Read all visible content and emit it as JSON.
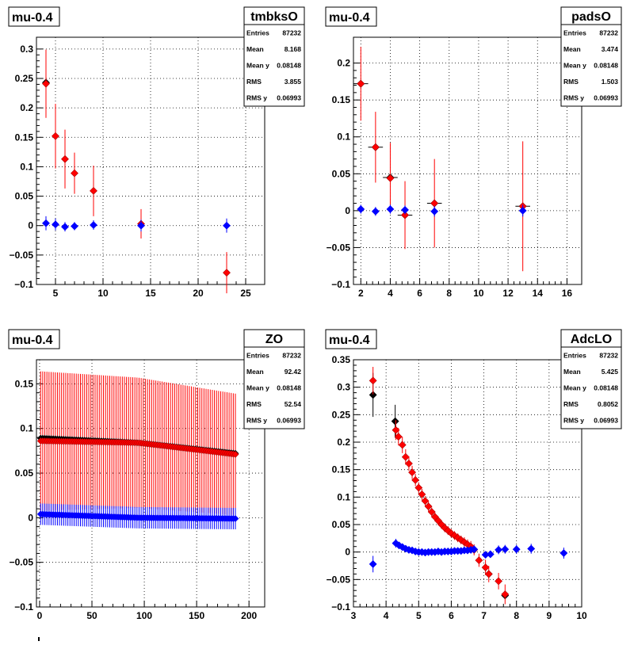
{
  "chart_data": [
    {
      "type": "scatter",
      "panel_title": "mu-0.4",
      "hist_name": "tmbksO",
      "stats": [
        {
          "label": "Entries",
          "value": "87232"
        },
        {
          "label": "Mean",
          "value": "8.168"
        },
        {
          "label": "Mean y",
          "value": "0.08148"
        },
        {
          "label": "RMS",
          "value": "3.855"
        },
        {
          "label": "RMS y",
          "value": "0.06993"
        }
      ],
      "xlim": [
        3,
        27
      ],
      "ylim": [
        -0.1,
        0.32
      ],
      "xticks": [
        5,
        10,
        15,
        20,
        25
      ],
      "yticks": [
        -0.1,
        -0.05,
        0,
        0.05,
        0.1,
        0.15,
        0.2,
        0.25,
        0.3
      ],
      "ytick_labels": [
        "−0.1",
        "−0.05",
        "0",
        "0.05",
        "0.1",
        "0.15",
        "0.2",
        "0.25",
        "0.3"
      ],
      "grid": true,
      "series": [
        {
          "color": "#000000",
          "points": [
            {
              "x": 4,
              "y": 0.243,
              "err": 0.0
            }
          ]
        },
        {
          "color": "#ff0000",
          "points": [
            {
              "x": 4,
              "y": 0.241,
              "err": 0.058
            },
            {
              "x": 5,
              "y": 0.152,
              "err": 0.055
            },
            {
              "x": 6,
              "y": 0.113,
              "err": 0.05
            },
            {
              "x": 7,
              "y": 0.089,
              "err": 0.035
            },
            {
              "x": 9,
              "y": 0.059,
              "err": 0.043
            },
            {
              "x": 14,
              "y": 0.003,
              "err": 0.025
            },
            {
              "x": 23,
              "y": -0.08,
              "err": 0.035
            }
          ]
        },
        {
          "color": "#0000ff",
          "points": [
            {
              "x": 4,
              "y": 0.004,
              "err": 0.012
            },
            {
              "x": 5,
              "y": 0.002,
              "err": 0.01
            },
            {
              "x": 6,
              "y": -0.002,
              "err": 0.008
            },
            {
              "x": 7,
              "y": -0.001,
              "err": 0.007
            },
            {
              "x": 9,
              "y": 0.001,
              "err": 0.008
            },
            {
              "x": 14,
              "y": 0.0,
              "err": 0.01
            },
            {
              "x": 23,
              "y": 0.0,
              "err": 0.012
            }
          ]
        }
      ]
    },
    {
      "type": "scatter",
      "panel_title": "mu-0.4",
      "hist_name": "padsO",
      "stats": [
        {
          "label": "Entries",
          "value": "87232"
        },
        {
          "label": "Mean",
          "value": "3.474"
        },
        {
          "label": "Mean y",
          "value": "0.08148"
        },
        {
          "label": "RMS",
          "value": "1.503"
        },
        {
          "label": "RMS y",
          "value": "0.06993"
        }
      ],
      "xlim": [
        1.5,
        17
      ],
      "ylim": [
        -0.1,
        0.235
      ],
      "xticks": [
        2,
        4,
        6,
        8,
        10,
        12,
        14,
        16
      ],
      "yticks": [
        -0.1,
        -0.05,
        0,
        0.05,
        0.1,
        0.15,
        0.2
      ],
      "ytick_labels": [
        "−0.1",
        "−0.05",
        "0",
        "0.05",
        "0.1",
        "0.15",
        "0.2"
      ],
      "grid": true,
      "series": [
        {
          "color": "#000000",
          "points": [
            {
              "x": 2,
              "y": 0.172,
              "err": 0.0,
              "xerr": 0.5
            },
            {
              "x": 3,
              "y": 0.086,
              "err": 0.0,
              "xerr": 0.5
            },
            {
              "x": 4,
              "y": 0.045,
              "err": 0.0,
              "xerr": 0.5
            },
            {
              "x": 5,
              "y": -0.006,
              "err": 0.0,
              "xerr": 0.5
            },
            {
              "x": 7,
              "y": 0.01,
              "err": 0.0,
              "xerr": 0.5
            },
            {
              "x": 13,
              "y": 0.006,
              "err": 0.0,
              "xerr": 0.5
            }
          ]
        },
        {
          "color": "#ff0000",
          "points": [
            {
              "x": 2,
              "y": 0.172,
              "err": 0.05
            },
            {
              "x": 3,
              "y": 0.086,
              "err": 0.048
            },
            {
              "x": 4,
              "y": 0.044,
              "err": 0.048
            },
            {
              "x": 5,
              "y": -0.006,
              "err": 0.046
            },
            {
              "x": 7,
              "y": 0.01,
              "err": 0.06
            },
            {
              "x": 13,
              "y": 0.006,
              "err": 0.088
            }
          ]
        },
        {
          "color": "#0000ff",
          "points": [
            {
              "x": 2,
              "y": 0.002,
              "err": 0.006
            },
            {
              "x": 3,
              "y": -0.001,
              "err": 0.006
            },
            {
              "x": 4,
              "y": 0.002,
              "err": 0.006
            },
            {
              "x": 5,
              "y": 0.001,
              "err": 0.006
            },
            {
              "x": 7,
              "y": -0.001,
              "err": 0.007
            },
            {
              "x": 13,
              "y": 0.0,
              "err": 0.008
            }
          ]
        }
      ]
    },
    {
      "type": "scatter",
      "panel_title": "mu-0.4",
      "hist_name": "ZO",
      "stats": [
        {
          "label": "Entries",
          "value": "87232"
        },
        {
          "label": "Mean",
          "value": "92.42"
        },
        {
          "label": "Mean y",
          "value": "0.08148"
        },
        {
          "label": "RMS",
          "value": "52.54"
        },
        {
          "label": "RMS y",
          "value": "0.06993"
        }
      ],
      "xlim": [
        -3,
        215
      ],
      "ylim": [
        -0.1,
        0.177
      ],
      "xticks": [
        0,
        50,
        100,
        150,
        200
      ],
      "yticks": [
        -0.1,
        -0.05,
        0,
        0.05,
        0.1,
        0.15
      ],
      "ytick_labels": [
        "−0.1",
        "−0.05",
        "0",
        "0.05",
        "0.1",
        "0.15"
      ],
      "grid": true,
      "dense": {
        "x_start": 1,
        "x_end": 187,
        "step": 2,
        "black": {
          "y_start": 0.089,
          "y_mid": 0.084,
          "y_end": 0.072,
          "err_start": 0.0,
          "err_end": 0.0
        },
        "red": {
          "y_start": 0.086,
          "y_mid": 0.084,
          "y_end": 0.071,
          "err_start": 0.078,
          "err_end": 0.068
        },
        "blue": {
          "y_start": 0.004,
          "y_mid": 0.0,
          "y_end": -0.001,
          "err_start": 0.012,
          "err_end": 0.012
        }
      }
    },
    {
      "type": "scatter",
      "panel_title": "mu-0.4",
      "hist_name": "AdcLO",
      "stats": [
        {
          "label": "Entries",
          "value": "87232"
        },
        {
          "label": "Mean",
          "value": "5.425"
        },
        {
          "label": "Mean y",
          "value": "0.08148"
        },
        {
          "label": "RMS",
          "value": "0.8052"
        },
        {
          "label": "RMS y",
          "value": "0.06993"
        }
      ],
      "xlim": [
        3,
        10
      ],
      "ylim": [
        -0.1,
        0.35
      ],
      "xticks": [
        3,
        4,
        5,
        6,
        7,
        8,
        9,
        10
      ],
      "yticks": [
        -0.1,
        -0.05,
        0,
        0.05,
        0.1,
        0.15,
        0.2,
        0.25,
        0.3,
        0.35
      ],
      "ytick_labels": [
        "−0.1",
        "−0.05",
        "0",
        "0.05",
        "0.1",
        "0.15",
        "0.2",
        "0.25",
        "0.3",
        "0.35"
      ],
      "grid": true,
      "series": [
        {
          "color": "#000000",
          "points": [
            {
              "x": 3.6,
              "y": 0.286,
              "err": 0.04
            },
            {
              "x": 4.28,
              "y": 0.238,
              "err": 0.03
            },
            {
              "x": 7.15,
              "y": -0.04,
              "err": 0.0
            },
            {
              "x": 7.65,
              "y": -0.079,
              "err": 0.0
            }
          ]
        },
        {
          "color": "#ff0000",
          "points": [
            {
              "x": 3.6,
              "y": 0.312,
              "err": 0.025
            },
            {
              "x": 4.3,
              "y": 0.222,
              "err": 0.018
            },
            {
              "x": 4.38,
              "y": 0.21,
              "err": 0.016
            },
            {
              "x": 4.5,
              "y": 0.195,
              "err": 0.015
            },
            {
              "x": 4.6,
              "y": 0.173,
              "err": 0.014
            },
            {
              "x": 4.7,
              "y": 0.161,
              "err": 0.013
            },
            {
              "x": 4.8,
              "y": 0.145,
              "err": 0.012
            },
            {
              "x": 4.9,
              "y": 0.131,
              "err": 0.011
            },
            {
              "x": 5.0,
              "y": 0.117,
              "err": 0.01
            },
            {
              "x": 5.1,
              "y": 0.105,
              "err": 0.01
            },
            {
              "x": 5.2,
              "y": 0.093,
              "err": 0.009
            },
            {
              "x": 5.3,
              "y": 0.083,
              "err": 0.009
            },
            {
              "x": 5.4,
              "y": 0.073,
              "err": 0.008
            },
            {
              "x": 5.5,
              "y": 0.064,
              "err": 0.008
            },
            {
              "x": 5.6,
              "y": 0.057,
              "err": 0.008
            },
            {
              "x": 5.7,
              "y": 0.05,
              "err": 0.008
            },
            {
              "x": 5.8,
              "y": 0.044,
              "err": 0.008
            },
            {
              "x": 5.9,
              "y": 0.039,
              "err": 0.008
            },
            {
              "x": 6.0,
              "y": 0.034,
              "err": 0.008
            },
            {
              "x": 6.1,
              "y": 0.03,
              "err": 0.008
            },
            {
              "x": 6.2,
              "y": 0.026,
              "err": 0.008
            },
            {
              "x": 6.3,
              "y": 0.022,
              "err": 0.008
            },
            {
              "x": 6.4,
              "y": 0.018,
              "err": 0.009
            },
            {
              "x": 6.5,
              "y": 0.014,
              "err": 0.009
            },
            {
              "x": 6.6,
              "y": 0.01,
              "err": 0.01
            },
            {
              "x": 6.7,
              "y": 0.004,
              "err": 0.01
            },
            {
              "x": 6.85,
              "y": -0.015,
              "err": 0.012
            },
            {
              "x": 7.05,
              "y": -0.028,
              "err": 0.014
            },
            {
              "x": 7.15,
              "y": -0.04,
              "err": 0.015
            },
            {
              "x": 7.45,
              "y": -0.053,
              "err": 0.015
            },
            {
              "x": 7.65,
              "y": -0.077,
              "err": 0.018
            }
          ]
        },
        {
          "color": "#0000ff",
          "points": [
            {
              "x": 3.6,
              "y": -0.022,
              "err": 0.015
            },
            {
              "x": 4.3,
              "y": 0.016,
              "err": 0.008
            },
            {
              "x": 4.4,
              "y": 0.012,
              "err": 0.006
            },
            {
              "x": 4.5,
              "y": 0.009,
              "err": 0.006
            },
            {
              "x": 4.6,
              "y": 0.006,
              "err": 0.005
            },
            {
              "x": 4.7,
              "y": 0.004,
              "err": 0.005
            },
            {
              "x": 4.8,
              "y": 0.003,
              "err": 0.005
            },
            {
              "x": 4.9,
              "y": 0.001,
              "err": 0.005
            },
            {
              "x": 5.0,
              "y": 0.0,
              "err": 0.004
            },
            {
              "x": 5.1,
              "y": 0.0,
              "err": 0.004
            },
            {
              "x": 5.2,
              "y": -0.001,
              "err": 0.004
            },
            {
              "x": 5.3,
              "y": 0.0,
              "err": 0.004
            },
            {
              "x": 5.4,
              "y": 0.0,
              "err": 0.004
            },
            {
              "x": 5.5,
              "y": 0.0,
              "err": 0.004
            },
            {
              "x": 5.6,
              "y": 0.001,
              "err": 0.004
            },
            {
              "x": 5.7,
              "y": 0.0,
              "err": 0.004
            },
            {
              "x": 5.8,
              "y": 0.001,
              "err": 0.004
            },
            {
              "x": 5.9,
              "y": 0.001,
              "err": 0.004
            },
            {
              "x": 6.0,
              "y": 0.001,
              "err": 0.004
            },
            {
              "x": 6.1,
              "y": 0.002,
              "err": 0.004
            },
            {
              "x": 6.2,
              "y": 0.002,
              "err": 0.004
            },
            {
              "x": 6.3,
              "y": 0.002,
              "err": 0.004
            },
            {
              "x": 6.4,
              "y": 0.003,
              "err": 0.005
            },
            {
              "x": 6.5,
              "y": 0.003,
              "err": 0.005
            },
            {
              "x": 6.6,
              "y": 0.004,
              "err": 0.005
            },
            {
              "x": 6.7,
              "y": 0.005,
              "err": 0.006
            },
            {
              "x": 7.05,
              "y": -0.005,
              "err": 0.006
            },
            {
              "x": 7.2,
              "y": -0.004,
              "err": 0.006
            },
            {
              "x": 7.45,
              "y": 0.004,
              "err": 0.008
            },
            {
              "x": 7.65,
              "y": 0.005,
              "err": 0.008
            },
            {
              "x": 8.0,
              "y": 0.005,
              "err": 0.008
            },
            {
              "x": 8.45,
              "y": 0.006,
              "err": 0.009
            },
            {
              "x": 9.45,
              "y": -0.002,
              "err": 0.01
            }
          ]
        }
      ]
    }
  ]
}
